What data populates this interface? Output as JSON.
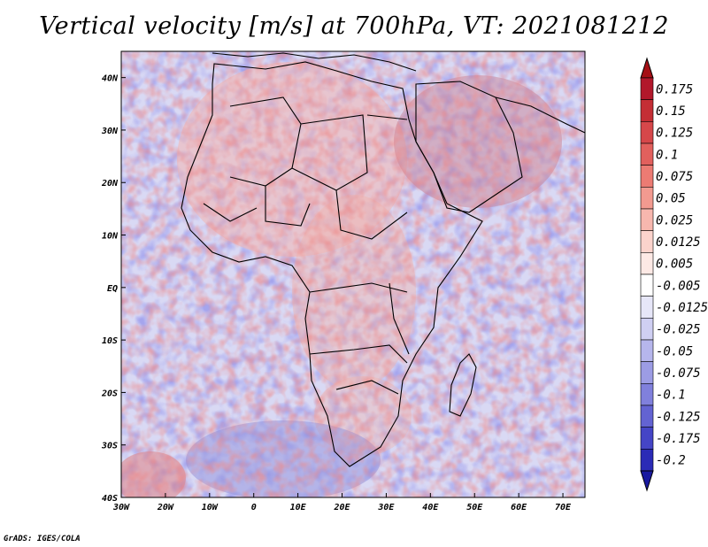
{
  "title": "Vertical velocity [m/s] at 700hPa, VT: 2021081212",
  "credit": "GrADS: IGES/COLA",
  "map": {
    "lon_range": [
      -30,
      75
    ],
    "lat_range": [
      -40,
      45
    ],
    "lat_ticks": [
      {
        "value": 40,
        "label": "40N"
      },
      {
        "value": 30,
        "label": "30N"
      },
      {
        "value": 20,
        "label": "20N"
      },
      {
        "value": 10,
        "label": "10N"
      },
      {
        "value": 0,
        "label": "EQ"
      },
      {
        "value": -10,
        "label": "10S"
      },
      {
        "value": -20,
        "label": "20S"
      },
      {
        "value": -30,
        "label": "30S"
      },
      {
        "value": -40,
        "label": "40S"
      }
    ],
    "lon_ticks": [
      {
        "value": -30,
        "label": "30W"
      },
      {
        "value": -20,
        "label": "20W"
      },
      {
        "value": -10,
        "label": "10W"
      },
      {
        "value": 0,
        "label": "0"
      },
      {
        "value": 10,
        "label": "10E"
      },
      {
        "value": 20,
        "label": "20E"
      },
      {
        "value": 30,
        "label": "30E"
      },
      {
        "value": 40,
        "label": "40E"
      },
      {
        "value": 50,
        "label": "50E"
      },
      {
        "value": 60,
        "label": "60E"
      },
      {
        "value": 70,
        "label": "70E"
      }
    ]
  },
  "colorbar": {
    "levels": [
      {
        "label": "0.175",
        "color": "#b2182b"
      },
      {
        "label": "0.15",
        "color": "#c42e35"
      },
      {
        "label": "0.125",
        "color": "#d6474a"
      },
      {
        "label": "0.1",
        "color": "#e2605d"
      },
      {
        "label": "0.075",
        "color": "#ec7b73"
      },
      {
        "label": "0.05",
        "color": "#f29a90"
      },
      {
        "label": "0.025",
        "color": "#f7b7ae"
      },
      {
        "label": "0.0125",
        "color": "#fbd3cc"
      },
      {
        "label": "0.005",
        "color": "#fde9e5"
      },
      {
        "label": "-0.005",
        "color": "#ffffff"
      },
      {
        "label": "-0.0125",
        "color": "#e6e6f8"
      },
      {
        "label": "-0.025",
        "color": "#cfcff2"
      },
      {
        "label": "-0.05",
        "color": "#b6b6ec"
      },
      {
        "label": "-0.075",
        "color": "#9c9ce4"
      },
      {
        "label": "-0.1",
        "color": "#8080dc"
      },
      {
        "label": "-0.125",
        "color": "#6363d2"
      },
      {
        "label": "-0.175",
        "color": "#4545c6"
      },
      {
        "label": "-0.2",
        "color": "#2b2bb6"
      }
    ],
    "top_arrow_color": "#a50f15",
    "bottom_arrow_color": "#1a1aa0"
  }
}
